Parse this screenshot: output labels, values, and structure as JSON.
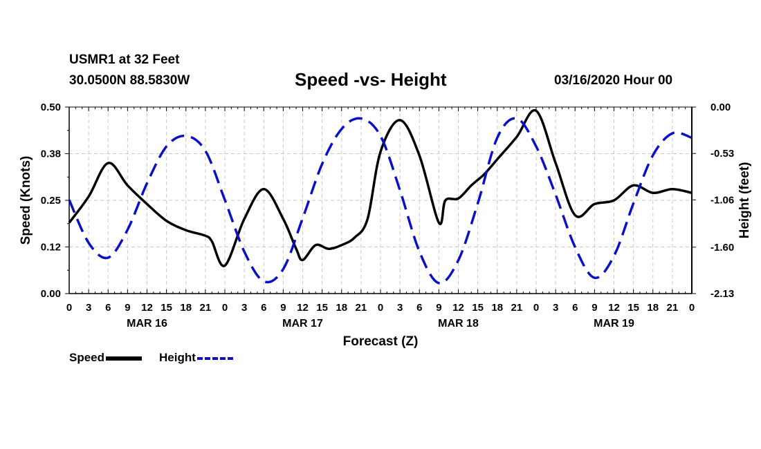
{
  "header": {
    "station": "USMR1 at 32 Feet",
    "coords": "30.0500N 88.5830W",
    "title": "Speed -vs- Height",
    "date": "03/16/2020 Hour 00"
  },
  "chart_data": {
    "type": "line",
    "title": "Speed -vs- Height",
    "xlabel": "Forecast (Z)",
    "ylabel": "Speed (Knots)",
    "y2label": "Height (feet)",
    "x_range_hours": [
      0,
      96
    ],
    "ylim": [
      0.0,
      0.5
    ],
    "y2lim": [
      -2.13,
      0.0
    ],
    "yticks": [
      "0.50",
      "0.38",
      "0.25",
      "0.12",
      "0.00"
    ],
    "yticks_values": [
      0.5,
      0.375,
      0.25,
      0.125,
      0.0
    ],
    "y2ticks": [
      "0.00",
      "-0.53",
      "-1.06",
      "-1.60",
      "-2.13"
    ],
    "y2ticks_values": [
      0.0,
      -0.53,
      -1.06,
      -1.6,
      -2.13
    ],
    "xtick_labels": [
      "0",
      "3",
      "6",
      "9",
      "12",
      "15",
      "18",
      "21",
      "0",
      "3",
      "6",
      "9",
      "12",
      "15",
      "18",
      "21",
      "0",
      "3",
      "6",
      "9",
      "12",
      "15",
      "18",
      "21",
      "0",
      "3",
      "6",
      "9",
      "12",
      "15",
      "18",
      "21",
      "0"
    ],
    "day_labels": [
      {
        "label": "MAR 16",
        "hour": 12
      },
      {
        "label": "MAR 17",
        "hour": 36
      },
      {
        "label": "MAR 18",
        "hour": 60
      },
      {
        "label": "MAR 19",
        "hour": 84
      }
    ],
    "grid": true,
    "series": [
      {
        "name": "Speed",
        "axis": "left",
        "color": "#000000",
        "style": "solid",
        "x": [
          0,
          3,
          6,
          9,
          12,
          15,
          18,
          21,
          22,
          24,
          27,
          30,
          33,
          35,
          36,
          38,
          40,
          42,
          44,
          46,
          48,
          51,
          54,
          57,
          58,
          60,
          62,
          64,
          66,
          69,
          72,
          75,
          78,
          81,
          84,
          87,
          90,
          93,
          96
        ],
        "values": [
          0.19,
          0.26,
          0.35,
          0.29,
          0.24,
          0.195,
          0.17,
          0.155,
          0.14,
          0.075,
          0.2,
          0.28,
          0.2,
          0.12,
          0.09,
          0.13,
          0.12,
          0.13,
          0.15,
          0.2,
          0.38,
          0.465,
          0.37,
          0.19,
          0.25,
          0.255,
          0.29,
          0.32,
          0.36,
          0.42,
          0.49,
          0.35,
          0.21,
          0.24,
          0.25,
          0.29,
          0.27,
          0.28,
          0.27
        ]
      },
      {
        "name": "Height",
        "axis": "right",
        "color": "#0a10c8",
        "style": "dashed",
        "x": [
          0,
          3,
          6,
          9,
          12,
          15,
          18,
          21,
          24,
          27,
          30,
          33,
          36,
          39,
          42,
          45,
          48,
          51,
          54,
          57,
          60,
          63,
          66,
          69,
          72,
          75,
          78,
          81,
          84,
          87,
          90,
          93,
          96
        ],
        "values": [
          -1.06,
          -1.55,
          -1.72,
          -1.4,
          -0.87,
          -0.45,
          -0.33,
          -0.5,
          -1.06,
          -1.65,
          -1.99,
          -1.85,
          -1.27,
          -0.65,
          -0.25,
          -0.13,
          -0.33,
          -0.95,
          -1.65,
          -2.01,
          -1.75,
          -1.1,
          -0.35,
          -0.13,
          -0.45,
          -1.0,
          -1.6,
          -1.95,
          -1.7,
          -1.1,
          -0.55,
          -0.3,
          -0.35
        ]
      }
    ]
  },
  "legend": {
    "speed_label": "Speed",
    "height_label": "Height"
  }
}
